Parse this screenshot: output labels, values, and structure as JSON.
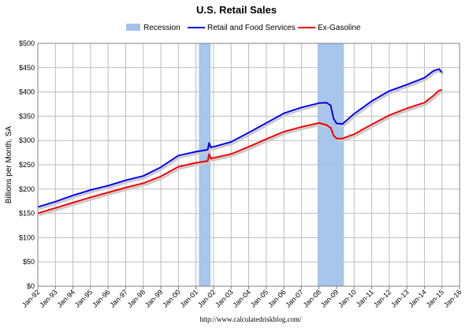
{
  "chart_data": {
    "type": "line",
    "title": "U.S. Retail Sales",
    "ylabel": "Billions per Month, SA",
    "xlabel": "",
    "ylim": [
      0,
      500
    ],
    "yticks": [
      0,
      50,
      100,
      150,
      200,
      250,
      300,
      350,
      400,
      450,
      500
    ],
    "ytick_labels": [
      "$0",
      "$50",
      "$100",
      "$150",
      "$200",
      "$250",
      "$300",
      "$350",
      "$400",
      "$450",
      "$500"
    ],
    "xlim": [
      1992.0,
      2016.0
    ],
    "xtick_labels": [
      "Jan-92",
      "Jan-93",
      "Jan-94",
      "Jan-95",
      "Jan-96",
      "Jan-97",
      "Jan-98",
      "Jan-99",
      "Jan-00",
      "Jan-01",
      "Jan-02",
      "Jan-03",
      "Jan-04",
      "Jan-05",
      "Jan-06",
      "Jan-07",
      "Jan-08",
      "Jan-09",
      "Jan-10",
      "Jan-11",
      "Jan-12",
      "Jan-13",
      "Jan-14",
      "Jan-15",
      "Jan-16"
    ],
    "grid": true,
    "legend_position": "top",
    "recessions": [
      {
        "start": "Mar-01",
        "end": "Nov-01"
      },
      {
        "start": "Dec-07",
        "end": "Jun-09"
      }
    ],
    "legend": [
      {
        "label": "Recession",
        "kind": "band",
        "color": "#a3c2ea"
      },
      {
        "label": "Retail and Food Services",
        "kind": "line",
        "color": "#0000ee"
      },
      {
        "label": "Ex-Gasoline",
        "kind": "line",
        "color": "#ee0000"
      }
    ],
    "series": [
      {
        "name": "Retail and Food Services",
        "color": "#0000ee",
        "points": [
          [
            "Jan-92",
            163
          ],
          [
            "Jan-93",
            174
          ],
          [
            "Jan-94",
            187
          ],
          [
            "Jan-95",
            198
          ],
          [
            "Jan-96",
            207
          ],
          [
            "Jan-97",
            218
          ],
          [
            "Jan-98",
            227
          ],
          [
            "Jan-99",
            245
          ],
          [
            "Jan-00",
            269
          ],
          [
            "Jan-01",
            277
          ],
          [
            "Sep-01",
            281
          ],
          [
            "Oct-01",
            295
          ],
          [
            "Nov-01",
            286
          ],
          [
            "Jan-02",
            287
          ],
          [
            "Jan-03",
            297
          ],
          [
            "Jan-04",
            316
          ],
          [
            "Jan-05",
            336
          ],
          [
            "Jan-06",
            356
          ],
          [
            "Jan-07",
            368
          ],
          [
            "Jan-08",
            377
          ],
          [
            "Jun-08",
            378
          ],
          [
            "Sep-08",
            372
          ],
          [
            "Nov-08",
            345
          ],
          [
            "Jan-09",
            335
          ],
          [
            "May-09",
            334
          ],
          [
            "Jan-10",
            355
          ],
          [
            "Jan-11",
            381
          ],
          [
            "Jan-12",
            402
          ],
          [
            "Jan-13",
            415
          ],
          [
            "Jan-14",
            429
          ],
          [
            "Jul-14",
            443
          ],
          [
            "Nov-14",
            447
          ],
          [
            "Jan-15",
            440
          ]
        ]
      },
      {
        "name": "Ex-Gasoline",
        "color": "#ee0000",
        "points": [
          [
            "Jan-92",
            150
          ],
          [
            "Jan-93",
            161
          ],
          [
            "Jan-94",
            172
          ],
          [
            "Jan-95",
            183
          ],
          [
            "Jan-96",
            193
          ],
          [
            "Jan-97",
            203
          ],
          [
            "Jan-98",
            212
          ],
          [
            "Jan-99",
            226
          ],
          [
            "Jan-00",
            246
          ],
          [
            "Jan-01",
            254
          ],
          [
            "Sep-01",
            258
          ],
          [
            "Oct-01",
            272
          ],
          [
            "Nov-01",
            263
          ],
          [
            "Jan-02",
            264
          ],
          [
            "Jan-03",
            272
          ],
          [
            "Jan-04",
            287
          ],
          [
            "Jan-05",
            303
          ],
          [
            "Jan-06",
            318
          ],
          [
            "Jan-07",
            328
          ],
          [
            "Jan-08",
            336
          ],
          [
            "Jun-08",
            332
          ],
          [
            "Sep-08",
            326
          ],
          [
            "Nov-08",
            310
          ],
          [
            "Jan-09",
            304
          ],
          [
            "May-09",
            304
          ],
          [
            "Jan-10",
            313
          ],
          [
            "Jan-11",
            333
          ],
          [
            "Jan-12",
            352
          ],
          [
            "Jan-13",
            366
          ],
          [
            "Jan-14",
            378
          ],
          [
            "Jul-14",
            392
          ],
          [
            "Nov-14",
            403
          ],
          [
            "Jan-15",
            404
          ]
        ]
      }
    ],
    "source": "http://www.calculatedriskblog.com/"
  }
}
